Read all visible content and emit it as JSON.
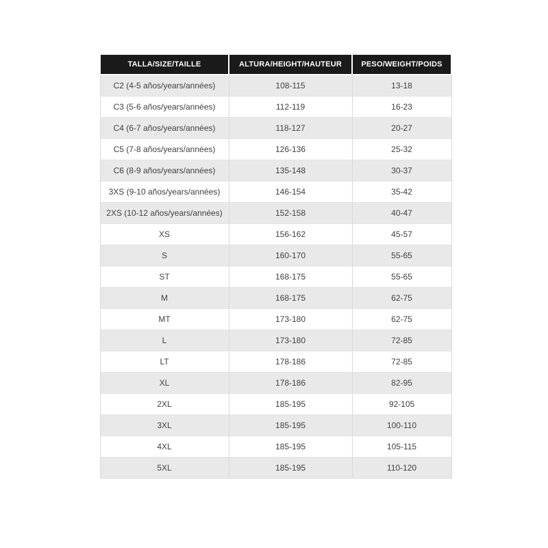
{
  "table": {
    "headers": {
      "size": "TALLA/SIZE/TAILLE",
      "height": "ALTURA/HEIGHT/HAUTEUR",
      "weight": "PESO/WEIGHT/POIDS"
    },
    "rows": [
      {
        "size": "C2 (4-5 años/years/années)",
        "height": "108-115",
        "weight": "13-18"
      },
      {
        "size": "C3 (5-6 años/years/années)",
        "height": "112-119",
        "weight": "16-23"
      },
      {
        "size": "C4 (6-7 años/years/années)",
        "height": "118-127",
        "weight": "20-27"
      },
      {
        "size": "C5 (7-8 años/years/années)",
        "height": "126-136",
        "weight": "25-32"
      },
      {
        "size": "C6 (8-9 años/years/années)",
        "height": "135-148",
        "weight": "30-37"
      },
      {
        "size": "3XS (9-10 años/years/années)",
        "height": "146-154",
        "weight": "35-42"
      },
      {
        "size": "2XS (10-12 años/years/années)",
        "height": "152-158",
        "weight": "40-47"
      },
      {
        "size": "XS",
        "height": "156-162",
        "weight": "45-57"
      },
      {
        "size": "S",
        "height": "160-170",
        "weight": "55-65"
      },
      {
        "size": "ST",
        "height": "168-175",
        "weight": "55-65"
      },
      {
        "size": "M",
        "height": "168-175",
        "weight": "62-75"
      },
      {
        "size": "MT",
        "height": "173-180",
        "weight": "62-75"
      },
      {
        "size": "L",
        "height": "173-180",
        "weight": "72-85"
      },
      {
        "size": "LT",
        "height": "178-186",
        "weight": "72-85"
      },
      {
        "size": "XL",
        "height": "178-186",
        "weight": "82-95"
      },
      {
        "size": "2XL",
        "height": "185-195",
        "weight": "92-105"
      },
      {
        "size": "3XL",
        "height": "185-195",
        "weight": "100-110"
      },
      {
        "size": "4XL",
        "height": "185-195",
        "weight": "105-115"
      },
      {
        "size": "5XL",
        "height": "185-195",
        "weight": "110-120"
      }
    ],
    "colors": {
      "header_bg": "#1a1a1a",
      "header_text": "#ffffff",
      "row_alt_bg": "#e9e9e9",
      "row_bg": "#ffffff",
      "body_text": "#404040",
      "divider": "#d9d9d9"
    }
  }
}
